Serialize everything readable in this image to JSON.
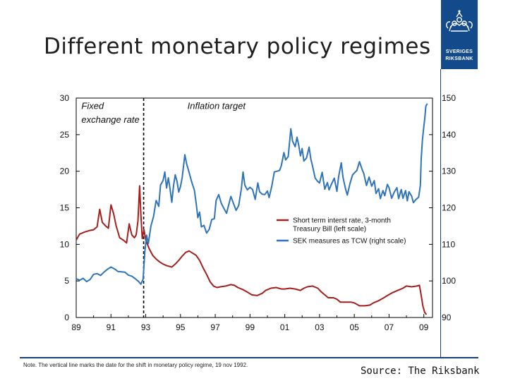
{
  "slide": {
    "title": "Different monetary policy regimes",
    "logo_line1": "SVERIGES",
    "logo_line2": "RIKSBANK",
    "note": "Note. The vertical line marks the date for the shift in monetary policy regime, 19 nov 1992.",
    "source": "Source: The Riksbank"
  },
  "colors": {
    "rate": "#a51f1f",
    "tcw": "#2f74b8",
    "brand": "#134a8c",
    "axis": "#000000"
  },
  "chart_data": {
    "type": "line",
    "xlabel": "",
    "ylabel": "",
    "x_range": [
      1989,
      2009.5
    ],
    "x_ticks": [
      1989,
      1991,
      1993,
      1995,
      1997,
      1999,
      2001,
      2003,
      2005,
      2007,
      2009
    ],
    "x_tick_labels": [
      "89",
      "91",
      "93",
      "95",
      "97",
      "99",
      "01",
      "03",
      "05",
      "07",
      "09"
    ],
    "left_axis": {
      "range": [
        0,
        30
      ],
      "ticks": [
        0,
        5,
        10,
        15,
        20,
        25,
        30
      ]
    },
    "right_axis": {
      "range": [
        90,
        150
      ],
      "ticks": [
        90,
        100,
        110,
        120,
        130,
        140,
        150
      ]
    },
    "regime_change": 1992.88,
    "annotations": [
      {
        "text": "Fixed",
        "x": 1989.3,
        "y": 28.5
      },
      {
        "text": "exchange rate",
        "x": 1989.3,
        "y": 26.6
      },
      {
        "text": "Inflation target",
        "x": 1995.4,
        "y": 28.5
      }
    ],
    "legend_position": "middle-right",
    "series": [
      {
        "name": "Short term interst rate, 3-month",
        "name_line2": "Treasury Bill (left scale)",
        "axis": "left",
        "points": [
          [
            1989.0,
            10.6
          ],
          [
            1989.2,
            11.4
          ],
          [
            1989.5,
            11.7
          ],
          [
            1989.8,
            11.9
          ],
          [
            1990.0,
            12.0
          ],
          [
            1990.2,
            12.4
          ],
          [
            1990.35,
            14.8
          ],
          [
            1990.5,
            13.0
          ],
          [
            1990.7,
            12.5
          ],
          [
            1990.85,
            12.2
          ],
          [
            1991.0,
            15.4
          ],
          [
            1991.15,
            14.2
          ],
          [
            1991.3,
            12.5
          ],
          [
            1991.5,
            10.9
          ],
          [
            1991.7,
            10.6
          ],
          [
            1991.9,
            10.2
          ],
          [
            1992.05,
            12.8
          ],
          [
            1992.2,
            11.3
          ],
          [
            1992.35,
            10.9
          ],
          [
            1992.45,
            11.3
          ],
          [
            1992.55,
            13.2
          ],
          [
            1992.65,
            18.0
          ],
          [
            1992.72,
            14.2
          ],
          [
            1992.8,
            10.8
          ],
          [
            1992.9,
            12.0
          ],
          [
            1993.0,
            10.6
          ],
          [
            1993.2,
            9.4
          ],
          [
            1993.4,
            8.5
          ],
          [
            1993.6,
            8.0
          ],
          [
            1993.8,
            7.6
          ],
          [
            1994.0,
            7.3
          ],
          [
            1994.2,
            7.1
          ],
          [
            1994.5,
            6.9
          ],
          [
            1994.7,
            7.3
          ],
          [
            1994.9,
            7.8
          ],
          [
            1995.1,
            8.4
          ],
          [
            1995.3,
            8.9
          ],
          [
            1995.5,
            9.1
          ],
          [
            1995.7,
            8.8
          ],
          [
            1995.9,
            8.5
          ],
          [
            1996.1,
            7.8
          ],
          [
            1996.3,
            6.8
          ],
          [
            1996.5,
            5.9
          ],
          [
            1996.7,
            4.9
          ],
          [
            1996.9,
            4.3
          ],
          [
            1997.1,
            4.1
          ],
          [
            1997.3,
            4.2
          ],
          [
            1997.6,
            4.3
          ],
          [
            1997.9,
            4.5
          ],
          [
            1998.1,
            4.4
          ],
          [
            1998.3,
            4.1
          ],
          [
            1998.6,
            3.8
          ],
          [
            1998.9,
            3.4
          ],
          [
            1999.1,
            3.1
          ],
          [
            1999.4,
            3.0
          ],
          [
            1999.7,
            3.3
          ],
          [
            1999.9,
            3.7
          ],
          [
            2000.2,
            4.0
          ],
          [
            2000.5,
            4.1
          ],
          [
            2000.8,
            3.9
          ],
          [
            2001.0,
            3.9
          ],
          [
            2001.3,
            4.0
          ],
          [
            2001.6,
            3.9
          ],
          [
            2001.9,
            3.7
          ],
          [
            2002.1,
            4.0
          ],
          [
            2002.3,
            4.2
          ],
          [
            2002.6,
            4.3
          ],
          [
            2002.9,
            4.0
          ],
          [
            2003.1,
            3.5
          ],
          [
            2003.3,
            3.1
          ],
          [
            2003.5,
            2.7
          ],
          [
            2003.8,
            2.7
          ],
          [
            2004.0,
            2.5
          ],
          [
            2004.2,
            2.1
          ],
          [
            2004.5,
            2.1
          ],
          [
            2004.8,
            2.1
          ],
          [
            2005.0,
            2.0
          ],
          [
            2005.3,
            1.6
          ],
          [
            2005.6,
            1.6
          ],
          [
            2005.9,
            1.7
          ],
          [
            2006.1,
            2.0
          ],
          [
            2006.4,
            2.3
          ],
          [
            2006.7,
            2.7
          ],
          [
            2006.9,
            3.0
          ],
          [
            2007.2,
            3.4
          ],
          [
            2007.5,
            3.7
          ],
          [
            2007.8,
            4.0
          ],
          [
            2008.0,
            4.3
          ],
          [
            2008.3,
            4.2
          ],
          [
            2008.6,
            4.3
          ],
          [
            2008.75,
            4.4
          ],
          [
            2008.85,
            3.0
          ],
          [
            2008.95,
            1.5
          ],
          [
            2009.05,
            0.7
          ],
          [
            2009.15,
            0.4
          ]
        ]
      },
      {
        "name": "SEK measures as TCW (right scale)",
        "axis": "right",
        "points": [
          [
            1989.0,
            100.6
          ],
          [
            1989.2,
            100.2
          ],
          [
            1989.4,
            100.7
          ],
          [
            1989.6,
            99.8
          ],
          [
            1989.8,
            100.4
          ],
          [
            1990.0,
            101.8
          ],
          [
            1990.2,
            102.0
          ],
          [
            1990.4,
            101.5
          ],
          [
            1990.6,
            102.4
          ],
          [
            1990.8,
            103.2
          ],
          [
            1991.0,
            103.8
          ],
          [
            1991.2,
            103.3
          ],
          [
            1991.4,
            102.6
          ],
          [
            1991.6,
            102.5
          ],
          [
            1991.8,
            102.4
          ],
          [
            1992.0,
            101.6
          ],
          [
            1992.2,
            101.3
          ],
          [
            1992.4,
            100.6
          ],
          [
            1992.6,
            99.8
          ],
          [
            1992.72,
            99.1
          ],
          [
            1992.85,
            100.5
          ],
          [
            1992.95,
            108.0
          ],
          [
            1993.05,
            112.5
          ],
          [
            1993.15,
            110.2
          ],
          [
            1993.3,
            115.0
          ],
          [
            1993.45,
            117.6
          ],
          [
            1993.6,
            122.0
          ],
          [
            1993.75,
            120.4
          ],
          [
            1993.85,
            126.2
          ],
          [
            1994.0,
            127.5
          ],
          [
            1994.1,
            129.8
          ],
          [
            1994.2,
            125.4
          ],
          [
            1994.3,
            128.2
          ],
          [
            1994.4,
            125.2
          ],
          [
            1994.5,
            121.5
          ],
          [
            1994.6,
            126.1
          ],
          [
            1994.7,
            129.0
          ],
          [
            1994.8,
            127.2
          ],
          [
            1994.9,
            124.3
          ],
          [
            1995.0,
            125.8
          ],
          [
            1995.1,
            128.4
          ],
          [
            1995.25,
            134.5
          ],
          [
            1995.35,
            132.1
          ],
          [
            1995.5,
            129.6
          ],
          [
            1995.65,
            127.0
          ],
          [
            1995.8,
            124.8
          ],
          [
            1995.9,
            121.3
          ],
          [
            1996.0,
            117.3
          ],
          [
            1996.1,
            118.8
          ],
          [
            1996.2,
            114.8
          ],
          [
            1996.35,
            115.2
          ],
          [
            1996.5,
            113.1
          ],
          [
            1996.65,
            114.1
          ],
          [
            1996.8,
            116.8
          ],
          [
            1996.95,
            117.0
          ],
          [
            1997.05,
            122.0
          ],
          [
            1997.2,
            123.6
          ],
          [
            1997.35,
            121.2
          ],
          [
            1997.5,
            119.8
          ],
          [
            1997.65,
            118.5
          ],
          [
            1997.8,
            121.3
          ],
          [
            1997.9,
            123.1
          ],
          [
            1998.05,
            121.2
          ],
          [
            1998.2,
            119.3
          ],
          [
            1998.35,
            120.6
          ],
          [
            1998.5,
            125.1
          ],
          [
            1998.6,
            129.8
          ],
          [
            1998.7,
            126.2
          ],
          [
            1998.85,
            124.9
          ],
          [
            1999.0,
            125.6
          ],
          [
            1999.15,
            125.0
          ],
          [
            1999.3,
            122.3
          ],
          [
            1999.45,
            126.8
          ],
          [
            1999.55,
            124.4
          ],
          [
            1999.7,
            123.7
          ],
          [
            1999.85,
            123.6
          ],
          [
            2000.0,
            124.6
          ],
          [
            2000.1,
            122.8
          ],
          [
            2000.25,
            125.8
          ],
          [
            2000.4,
            129.8
          ],
          [
            2000.55,
            130.0
          ],
          [
            2000.7,
            130.2
          ],
          [
            2000.8,
            131.5
          ],
          [
            2000.95,
            135.1
          ],
          [
            2001.05,
            133.1
          ],
          [
            2001.2,
            134.0
          ],
          [
            2001.35,
            141.6
          ],
          [
            2001.45,
            138.2
          ],
          [
            2001.6,
            136.7
          ],
          [
            2001.7,
            139.3
          ],
          [
            2001.8,
            137.2
          ],
          [
            2001.9,
            134.2
          ],
          [
            2002.0,
            136.2
          ],
          [
            2002.1,
            132.8
          ],
          [
            2002.25,
            133.6
          ],
          [
            2002.4,
            136.6
          ],
          [
            2002.5,
            133.3
          ],
          [
            2002.6,
            131.4
          ],
          [
            2002.75,
            128.1
          ],
          [
            2002.9,
            127.2
          ],
          [
            2003.0,
            126.8
          ],
          [
            2003.15,
            129.7
          ],
          [
            2003.3,
            125.1
          ],
          [
            2003.45,
            126.9
          ],
          [
            2003.55,
            124.9
          ],
          [
            2003.7,
            126.6
          ],
          [
            2003.85,
            128.1
          ],
          [
            2004.0,
            124.5
          ],
          [
            2004.1,
            128.6
          ],
          [
            2004.25,
            132.3
          ],
          [
            2004.35,
            128.4
          ],
          [
            2004.5,
            125.1
          ],
          [
            2004.6,
            123.5
          ],
          [
            2004.75,
            126.6
          ],
          [
            2004.9,
            129.0
          ],
          [
            2005.0,
            129.5
          ],
          [
            2005.15,
            130.2
          ],
          [
            2005.3,
            132.6
          ],
          [
            2005.45,
            130.5
          ],
          [
            2005.55,
            129.3
          ],
          [
            2005.7,
            126.1
          ],
          [
            2005.85,
            128.4
          ],
          [
            2006.0,
            125.9
          ],
          [
            2006.15,
            127.4
          ],
          [
            2006.25,
            123.9
          ],
          [
            2006.4,
            125.2
          ],
          [
            2006.5,
            122.5
          ],
          [
            2006.65,
            124.7
          ],
          [
            2006.75,
            123.3
          ],
          [
            2006.9,
            126.4
          ],
          [
            2007.0,
            125.5
          ],
          [
            2007.15,
            122.6
          ],
          [
            2007.3,
            124.3
          ],
          [
            2007.45,
            125.5
          ],
          [
            2007.55,
            122.5
          ],
          [
            2007.7,
            125.0
          ],
          [
            2007.8,
            122.6
          ],
          [
            2007.95,
            124.7
          ],
          [
            2008.05,
            121.9
          ],
          [
            2008.15,
            124.4
          ],
          [
            2008.3,
            123.2
          ],
          [
            2008.4,
            121.4
          ],
          [
            2008.55,
            122.3
          ],
          [
            2008.7,
            122.9
          ],
          [
            2008.8,
            126.1
          ],
          [
            2008.85,
            133.5
          ],
          [
            2008.92,
            138.5
          ],
          [
            2009.0,
            142.2
          ],
          [
            2009.05,
            144.2
          ],
          [
            2009.12,
            147.8
          ],
          [
            2009.2,
            148.5
          ]
        ]
      }
    ]
  }
}
